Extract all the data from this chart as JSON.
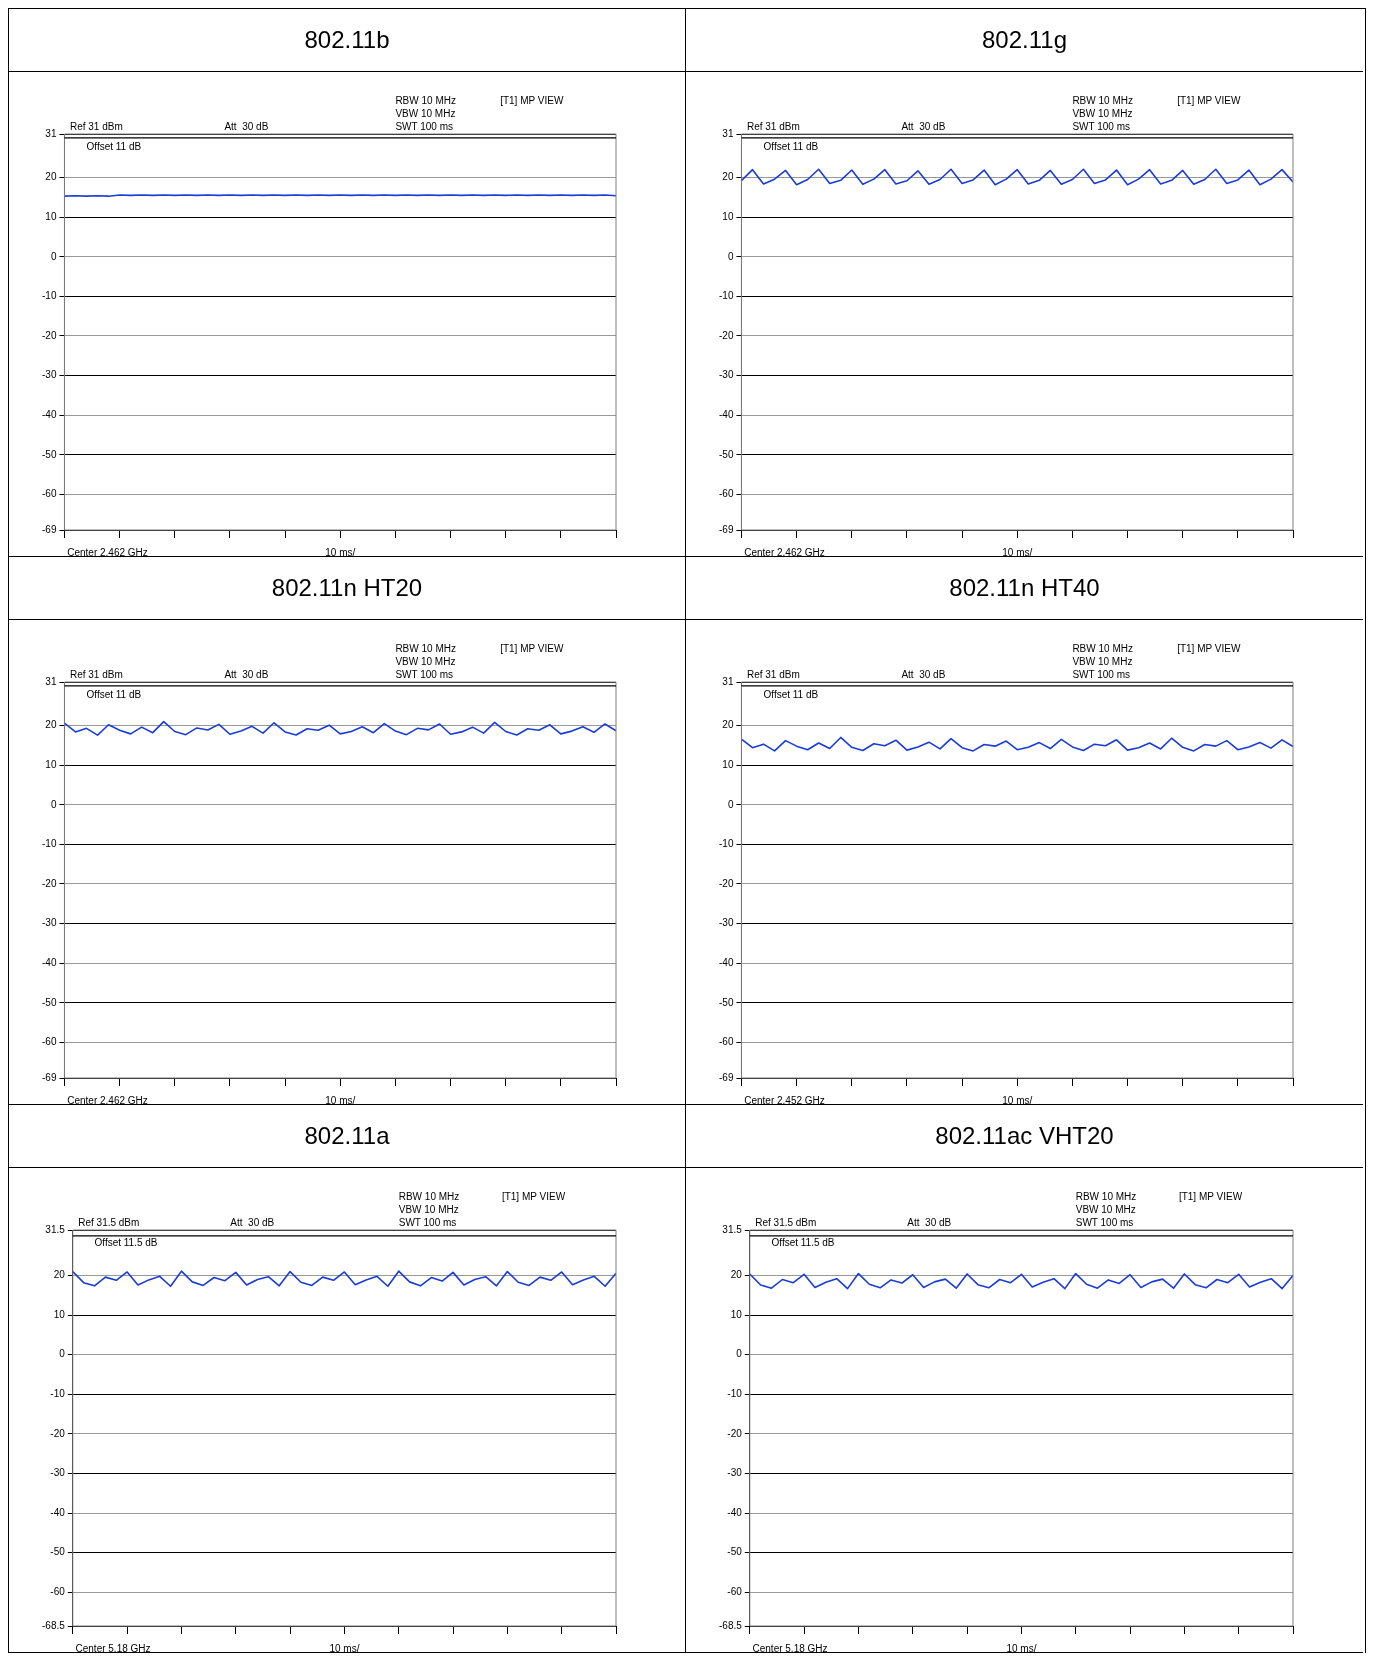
{
  "chart_data": [
    {
      "type": "line",
      "title": "802.11b",
      "categories": [
        null,
        null,
        null,
        null,
        null,
        null,
        null,
        null,
        null,
        null,
        null,
        null,
        null,
        null,
        null,
        null,
        null,
        null,
        null,
        null,
        null,
        null,
        null,
        null,
        null,
        null,
        null,
        null,
        null,
        null,
        null,
        null,
        null,
        null,
        null,
        null,
        null,
        null,
        null,
        null,
        null,
        null,
        null,
        null,
        null,
        null,
        null,
        null,
        null,
        null,
        null
      ],
      "series": [
        {
          "color": "#1a3cd8",
          "values": [
            15.3,
            15.4,
            15.3,
            15.4,
            15.3,
            15.6,
            15.5,
            15.6,
            15.5,
            15.6,
            15.5,
            15.6,
            15.5,
            15.6,
            15.5,
            15.6,
            15.5,
            15.6,
            15.5,
            15.6,
            15.5,
            15.6,
            15.5,
            15.6,
            15.5,
            15.6,
            15.5,
            15.6,
            15.5,
            15.6,
            15.5,
            15.6,
            15.5,
            15.6,
            15.5,
            15.6,
            15.5,
            15.6,
            15.5,
            15.6,
            15.5,
            15.6,
            15.5,
            15.6,
            15.5,
            15.6,
            15.5,
            15.6,
            15.5,
            15.6,
            15.4
          ]
        }
      ],
      "ylim": [
        -69,
        31
      ],
      "yticks": [
        -69,
        -60,
        -50,
        -40,
        -30,
        -20,
        -10,
        0,
        10,
        20,
        31
      ],
      "grid": "y",
      "tick_labels": "y",
      "ref_lines": [
        {
          "axis": "y",
          "value": 30
        }
      ],
      "annotations": [
        "Ref 31 dBm",
        "Att  30 dB",
        "RBW 10 MHz",
        "VBW 10 MHz",
        "SWT 100 ms",
        "[T1] MP VIEW",
        "Offset 11 dB",
        "Center 2.462 GHz",
        "10 ms/"
      ]
    },
    {
      "type": "line",
      "title": "802.11g",
      "categories": [
        null,
        null,
        null,
        null,
        null,
        null,
        null,
        null,
        null,
        null,
        null,
        null,
        null,
        null,
        null,
        null,
        null,
        null,
        null,
        null,
        null,
        null,
        null,
        null,
        null,
        null,
        null,
        null,
        null,
        null,
        null,
        null,
        null,
        null,
        null,
        null,
        null,
        null,
        null,
        null,
        null,
        null,
        null,
        null,
        null,
        null,
        null,
        null,
        null,
        null,
        null
      ],
      "series": [
        {
          "color": "#1a3cd8",
          "values": [
            19.2,
            22.0,
            18.4,
            19.6,
            21.8,
            18.2,
            19.5,
            22.1,
            18.5,
            19.3,
            21.9,
            18.3,
            19.6,
            22.0,
            18.4,
            19.2,
            21.7,
            18.3,
            19.5,
            22.1,
            18.5,
            19.4,
            21.9,
            18.2,
            19.6,
            22.0,
            18.4,
            19.3,
            21.8,
            18.3,
            19.5,
            22.1,
            18.5,
            19.4,
            21.9,
            18.2,
            19.6,
            22.0,
            18.4,
            19.3,
            21.8,
            18.3,
            19.5,
            22.1,
            18.5,
            19.4,
            21.9,
            18.2,
            19.6,
            22.0,
            18.9
          ]
        }
      ],
      "ylim": [
        -69,
        31
      ],
      "yticks": [
        -69,
        -60,
        -50,
        -40,
        -30,
        -20,
        -10,
        0,
        10,
        20,
        31
      ],
      "grid": "y",
      "tick_labels": "y",
      "ref_lines": [
        {
          "axis": "y",
          "value": 30
        }
      ],
      "annotations": [
        "Ref 31 dBm",
        "Att  30 dB",
        "RBW 10 MHz",
        "VBW 10 MHz",
        "SWT 100 ms",
        "[T1] MP VIEW",
        "Offset 11 dB",
        "Center 2.462 GHz",
        "10 ms/"
      ]
    },
    {
      "type": "line",
      "title": "802.11n HT20",
      "categories": [
        null,
        null,
        null,
        null,
        null,
        null,
        null,
        null,
        null,
        null,
        null,
        null,
        null,
        null,
        null,
        null,
        null,
        null,
        null,
        null,
        null,
        null,
        null,
        null,
        null,
        null,
        null,
        null,
        null,
        null,
        null,
        null,
        null,
        null,
        null,
        null,
        null,
        null,
        null,
        null,
        null,
        null,
        null,
        null,
        null,
        null,
        null,
        null,
        null,
        null,
        null
      ],
      "series": [
        {
          "color": "#1a3cd8",
          "values": [
            20.6,
            18.4,
            19.3,
            17.6,
            20.2,
            18.8,
            17.9,
            19.6,
            18.2,
            21.0,
            18.5,
            17.7,
            19.4,
            18.9,
            20.3,
            17.8,
            18.6,
            19.8,
            18.1,
            20.7,
            18.4,
            17.6,
            19.2,
            18.8,
            20.1,
            17.9,
            18.5,
            19.7,
            18.2,
            20.5,
            18.6,
            17.7,
            19.3,
            18.9,
            20.4,
            17.8,
            18.4,
            19.6,
            18.1,
            20.8,
            18.5,
            17.6,
            19.2,
            18.8,
            20.2,
            17.9,
            18.6,
            19.7,
            18.3,
            20.4,
            18.7
          ]
        }
      ],
      "ylim": [
        -69,
        31
      ],
      "yticks": [
        -69,
        -60,
        -50,
        -40,
        -30,
        -20,
        -10,
        0,
        10,
        20,
        31
      ],
      "grid": "y",
      "tick_labels": "y",
      "ref_lines": [
        {
          "axis": "y",
          "value": 30
        }
      ],
      "annotations": [
        "Ref 31 dBm",
        "Att  30 dB",
        "RBW 10 MHz",
        "VBW 10 MHz",
        "SWT 100 ms",
        "[T1] MP VIEW",
        "Offset 11 dB",
        "Center 2.462 GHz",
        "10 ms/"
      ]
    },
    {
      "type": "line",
      "title": "802.11n HT40",
      "categories": [
        null,
        null,
        null,
        null,
        null,
        null,
        null,
        null,
        null,
        null,
        null,
        null,
        null,
        null,
        null,
        null,
        null,
        null,
        null,
        null,
        null,
        null,
        null,
        null,
        null,
        null,
        null,
        null,
        null,
        null,
        null,
        null,
        null,
        null,
        null,
        null,
        null,
        null,
        null,
        null,
        null,
        null,
        null,
        null,
        null,
        null,
        null,
        null,
        null,
        null,
        null
      ],
      "series": [
        {
          "color": "#1a3cd8",
          "values": [
            16.6,
            14.4,
            15.3,
            13.6,
            16.2,
            14.8,
            13.9,
            15.6,
            14.2,
            17.0,
            14.5,
            13.7,
            15.4,
            14.9,
            16.3,
            13.8,
            14.6,
            15.8,
            14.1,
            16.7,
            14.4,
            13.6,
            15.2,
            14.8,
            16.1,
            13.9,
            14.5,
            15.7,
            14.2,
            16.5,
            14.6,
            13.7,
            15.3,
            14.9,
            16.4,
            13.8,
            14.4,
            15.6,
            14.1,
            16.8,
            14.5,
            13.6,
            15.2,
            14.8,
            16.2,
            13.9,
            14.6,
            15.7,
            14.3,
            16.4,
            14.7
          ]
        }
      ],
      "ylim": [
        -69,
        31
      ],
      "yticks": [
        -69,
        -60,
        -50,
        -40,
        -30,
        -20,
        -10,
        0,
        10,
        20,
        31
      ],
      "grid": "y",
      "tick_labels": "y",
      "ref_lines": [
        {
          "axis": "y",
          "value": 30
        }
      ],
      "annotations": [
        "Ref 31 dBm",
        "Att  30 dB",
        "RBW 10 MHz",
        "VBW 10 MHz",
        "SWT 100 ms",
        "[T1] MP VIEW",
        "Offset 11 dB",
        "Center 2.452 GHz",
        "10 ms/"
      ]
    },
    {
      "type": "line",
      "title": "802.11a",
      "categories": [
        null,
        null,
        null,
        null,
        null,
        null,
        null,
        null,
        null,
        null,
        null,
        null,
        null,
        null,
        null,
        null,
        null,
        null,
        null,
        null,
        null,
        null,
        null,
        null,
        null,
        null,
        null,
        null,
        null,
        null,
        null,
        null,
        null,
        null,
        null,
        null,
        null,
        null,
        null,
        null,
        null,
        null,
        null,
        null,
        null,
        null,
        null,
        null,
        null,
        null,
        null
      ],
      "series": [
        {
          "color": "#1a3cd8",
          "values": [
            21.0,
            18.2,
            17.4,
            19.6,
            18.8,
            20.9,
            17.6,
            18.9,
            19.8,
            17.3,
            21.1,
            18.4,
            17.5,
            19.5,
            18.7,
            20.8,
            17.6,
            19.0,
            19.7,
            17.4,
            21.0,
            18.3,
            17.5,
            19.6,
            18.8,
            20.9,
            17.7,
            18.9,
            19.8,
            17.3,
            21.1,
            18.4,
            17.4,
            19.5,
            18.6,
            20.8,
            17.6,
            19.0,
            19.7,
            17.4,
            21.0,
            18.3,
            17.5,
            19.6,
            18.8,
            20.9,
            17.7,
            18.9,
            19.8,
            17.3,
            20.6
          ]
        }
      ],
      "ylim": [
        -68.5,
        31.5
      ],
      "yticks": [
        -68.5,
        -60,
        -50,
        -40,
        -30,
        -20,
        -10,
        0,
        10,
        20,
        31.5
      ],
      "grid": "y",
      "tick_labels": "y",
      "ref_lines": [
        {
          "axis": "y",
          "value": 30
        }
      ],
      "annotations": [
        "Ref 31.5 dBm",
        "Att  30 dB",
        "RBW 10 MHz",
        "VBW 10 MHz",
        "SWT 100 ms",
        "[T1] MP VIEW",
        "Offset 11.5 dB",
        "Center 5.18 GHz",
        "10 ms/"
      ]
    },
    {
      "type": "line",
      "title": "802.11ac VHT20",
      "categories": [
        null,
        null,
        null,
        null,
        null,
        null,
        null,
        null,
        null,
        null,
        null,
        null,
        null,
        null,
        null,
        null,
        null,
        null,
        null,
        null,
        null,
        null,
        null,
        null,
        null,
        null,
        null,
        null,
        null,
        null,
        null,
        null,
        null,
        null,
        null,
        null,
        null,
        null,
        null,
        null,
        null,
        null,
        null,
        null,
        null,
        null,
        null,
        null,
        null,
        null,
        null
      ],
      "series": [
        {
          "color": "#1a3cd8",
          "values": [
            20.4,
            17.6,
            16.8,
            19.0,
            18.2,
            20.3,
            17.0,
            18.3,
            19.2,
            16.7,
            20.5,
            17.8,
            16.9,
            18.9,
            18.1,
            20.2,
            17.0,
            18.4,
            19.1,
            16.8,
            20.4,
            17.7,
            16.9,
            19.0,
            18.2,
            20.3,
            17.1,
            18.3,
            19.2,
            16.7,
            20.5,
            17.8,
            16.8,
            18.9,
            18.0,
            20.2,
            17.0,
            18.4,
            19.1,
            16.8,
            20.4,
            17.7,
            16.9,
            19.0,
            18.2,
            20.3,
            17.1,
            18.3,
            19.2,
            16.7,
            20.0
          ]
        }
      ],
      "ylim": [
        -68.5,
        31.5
      ],
      "yticks": [
        -68.5,
        -60,
        -50,
        -40,
        -30,
        -20,
        -10,
        0,
        10,
        20,
        31.5
      ],
      "grid": "y",
      "tick_labels": "y",
      "ref_lines": [
        {
          "axis": "y",
          "value": 30
        }
      ],
      "annotations": [
        "Ref 31.5 dBm",
        "Att  30 dB",
        "RBW 10 MHz",
        "VBW 10 MHz",
        "SWT 100 ms",
        "[T1] MP VIEW",
        "Offset 11.5 dB",
        "Center 5.18 GHz",
        "10 ms/"
      ]
    }
  ]
}
